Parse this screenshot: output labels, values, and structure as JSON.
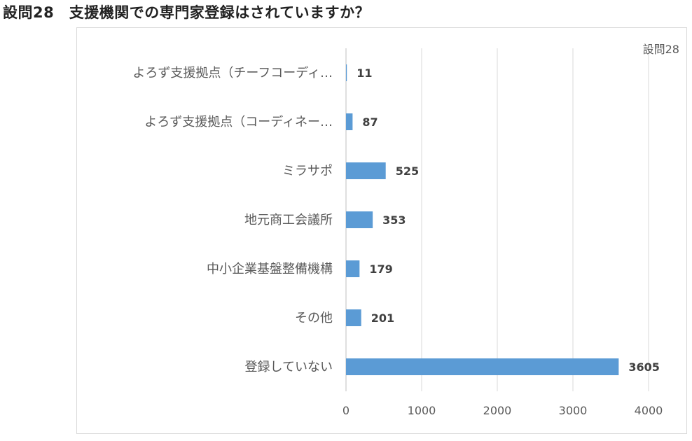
{
  "page": {
    "title": "設問28　支援機関での専門家登録はされていますか？"
  },
  "chart_data": {
    "type": "bar",
    "orientation": "horizontal",
    "title": "",
    "legend": {
      "label": "設問28",
      "placement": "top-right"
    },
    "categories": [
      "よろず支援拠点（チーフコーディ…",
      "よろず支援拠点（コーディネー…",
      "ミラサポ",
      "地元商工会議所",
      "中小企業基盤整備機構",
      "その他",
      "登録していない"
    ],
    "values": [
      11,
      87,
      525,
      353,
      179,
      201,
      3605
    ],
    "value_labels": [
      "11",
      "87",
      "525",
      "353",
      "179",
      "201",
      "3605"
    ],
    "xlim": [
      0,
      4000
    ],
    "x_ticks": [
      "0",
      "1000",
      "2000",
      "3000",
      "4000"
    ],
    "gridlines": true,
    "bar_color": "#5b9bd5"
  }
}
